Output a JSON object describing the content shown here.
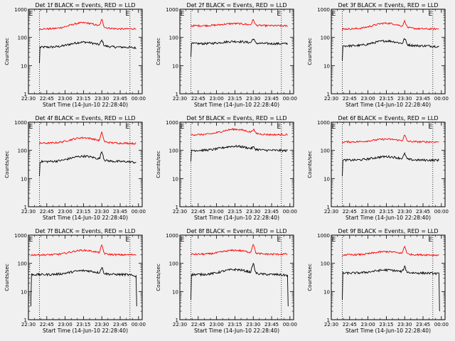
{
  "chart_data": {
    "type": "line",
    "yscale": "log",
    "ylim": [
      1,
      1000
    ],
    "x_tick_labels": [
      "22:30",
      "22:45",
      "23:00",
      "23:15",
      "23:30",
      "23:45",
      "00:00"
    ],
    "x_ticks_minutes": [
      0,
      15,
      30,
      45,
      60,
      75,
      90
    ],
    "xlim_minutes": [
      0,
      93
    ],
    "y_tick_labels": [
      "1",
      "10",
      "100",
      "1000"
    ],
    "y_tick_values": [
      1,
      10,
      100,
      1000
    ],
    "xlabel": "Start Time (14-Jun-10 22:28:40)",
    "ylabel": "Counts/sec",
    "event_marker": "E",
    "vlines_minutes": [
      9,
      83
    ],
    "colors": {
      "events": "#000000",
      "lld": "#ff0000"
    },
    "panels": [
      {
        "title": "Det 1f BLACK = Events, RED = LLD",
        "series": [
          {
            "name": "Events",
            "baseline": 45,
            "bump_peak": 68,
            "spike_min": 60,
            "spike_value": 78,
            "end_value": 40,
            "start_min": 9,
            "start_value": 12
          },
          {
            "name": "LLD",
            "baseline": 200,
            "bump_peak": 330,
            "spike_min": 60,
            "spike_value": 420,
            "end_value": 210,
            "start_min": 9,
            "start_value": 180
          }
        ]
      },
      {
        "title": "Det 2f BLACK = Events, RED = LLD",
        "series": [
          {
            "name": "Events",
            "baseline": 60,
            "bump_peak": 72,
            "spike_min": 60,
            "spike_value": 90,
            "end_value": 60,
            "start_min": 9,
            "start_value": 20
          },
          {
            "name": "LLD",
            "baseline": 260,
            "bump_peak": 310,
            "spike_min": 60,
            "spike_value": 420,
            "end_value": 250,
            "start_min": 9,
            "start_value": 230
          }
        ]
      },
      {
        "title": "Det 3f BLACK = Events, RED = LLD",
        "series": [
          {
            "name": "Events",
            "baseline": 50,
            "bump_peak": 75,
            "spike_min": 60,
            "spike_value": 90,
            "end_value": 45,
            "start_min": 9,
            "start_value": 15
          },
          {
            "name": "LLD",
            "baseline": 200,
            "bump_peak": 320,
            "spike_min": 60,
            "spike_value": 380,
            "end_value": 200,
            "start_min": 9,
            "start_value": 170
          }
        ]
      },
      {
        "title": "Det 4f BLACK = Events, RED = LLD",
        "series": [
          {
            "name": "Events",
            "baseline": 40,
            "bump_peak": 62,
            "spike_min": 60,
            "spike_value": 90,
            "end_value": 35,
            "start_min": 9,
            "start_value": 12
          },
          {
            "name": "LLD",
            "baseline": 180,
            "bump_peak": 280,
            "spike_min": 60,
            "spike_value": 420,
            "end_value": 170,
            "start_min": 9,
            "start_value": 160
          }
        ]
      },
      {
        "title": "Det 5f BLACK = Events, RED = LLD",
        "series": [
          {
            "name": "Events",
            "baseline": 100,
            "bump_peak": 140,
            "spike_min": 60,
            "spike_value": 130,
            "end_value": 95,
            "start_min": 9,
            "start_value": 40
          },
          {
            "name": "LLD",
            "baseline": 360,
            "bump_peak": 560,
            "spike_min": 60,
            "spike_value": 560,
            "end_value": 370,
            "start_min": 9,
            "start_value": 340
          }
        ]
      },
      {
        "title": "Det 6f BLACK = Events, RED = LLD",
        "series": [
          {
            "name": "Events",
            "baseline": 45,
            "bump_peak": 60,
            "spike_min": 60,
            "spike_value": 75,
            "end_value": 45,
            "start_min": 9,
            "start_value": 12
          },
          {
            "name": "LLD",
            "baseline": 200,
            "bump_peak": 250,
            "spike_min": 60,
            "spike_value": 340,
            "end_value": 200,
            "start_min": 9,
            "start_value": 180
          }
        ]
      },
      {
        "title": "Det 7f BLACK = Events, RED = LLD",
        "series": [
          {
            "name": "Events",
            "baseline": 40,
            "bump_peak": 55,
            "spike_min": 60,
            "spike_value": 70,
            "end_value": 30,
            "start_min": 2,
            "start_value": 3,
            "end_drop_value": 3
          },
          {
            "name": "LLD",
            "baseline": 200,
            "bump_peak": 290,
            "spike_min": 60,
            "spike_value": 420,
            "end_value": 210,
            "start_min": 2,
            "start_value": 180
          }
        ]
      },
      {
        "title": "Det 8f BLACK = Events, RED = LLD",
        "series": [
          {
            "name": "Events",
            "baseline": 40,
            "bump_peak": 60,
            "spike_min": 60,
            "spike_value": 95,
            "end_value": 35,
            "start_min": 9,
            "start_value": 5,
            "end_drop_value": 3
          },
          {
            "name": "LLD",
            "baseline": 210,
            "bump_peak": 290,
            "spike_min": 60,
            "spike_value": 480,
            "end_value": 220,
            "start_min": 9,
            "start_value": 190
          }
        ]
      },
      {
        "title": "Det 9f BLACK = Events, RED = LLD",
        "series": [
          {
            "name": "Events",
            "baseline": 45,
            "bump_peak": 58,
            "spike_min": 60,
            "spike_value": 75,
            "end_value": 40,
            "start_min": 9,
            "start_value": 5,
            "end_drop_value": 2
          },
          {
            "name": "LLD",
            "baseline": 200,
            "bump_peak": 260,
            "spike_min": 60,
            "spike_value": 400,
            "end_value": 190,
            "start_min": 9,
            "start_value": 180
          }
        ]
      }
    ]
  }
}
